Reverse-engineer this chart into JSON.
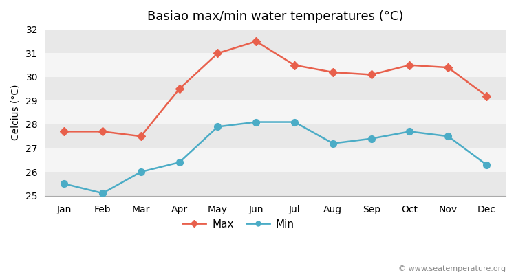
{
  "title": "Basiao max/min water temperatures (°C)",
  "ylabel": "Celcius (°C)",
  "months": [
    "Jan",
    "Feb",
    "Mar",
    "Apr",
    "May",
    "Jun",
    "Jul",
    "Aug",
    "Sep",
    "Oct",
    "Nov",
    "Dec"
  ],
  "max_temps": [
    27.7,
    27.7,
    27.5,
    29.5,
    31.0,
    31.5,
    30.5,
    30.2,
    30.1,
    30.5,
    30.4,
    29.2
  ],
  "min_temps": [
    25.5,
    25.1,
    26.0,
    26.4,
    27.9,
    28.1,
    28.1,
    27.2,
    27.4,
    27.7,
    27.5,
    26.3
  ],
  "max_color": "#e8604c",
  "min_color": "#4bacc6",
  "ylim_min": 25,
  "ylim_max": 32,
  "yticks": [
    25,
    26,
    27,
    28,
    29,
    30,
    31,
    32
  ],
  "band_colors": [
    "#e8e8e8",
    "#f5f5f5"
  ],
  "figure_bg": "#ffffff",
  "watermark": "© www.seatemperature.org",
  "title_fontsize": 13,
  "label_fontsize": 10,
  "tick_fontsize": 10
}
